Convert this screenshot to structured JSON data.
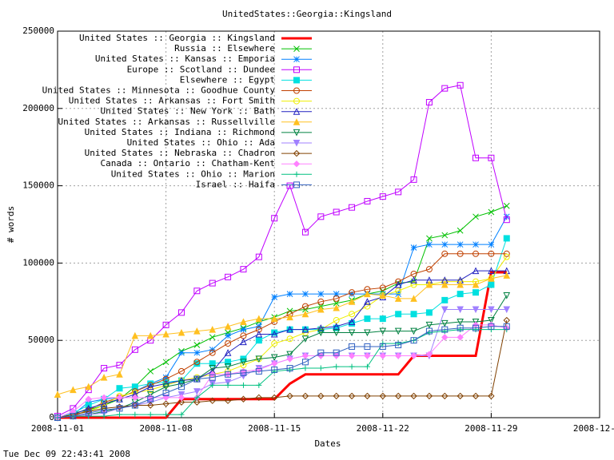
{
  "chart_data": {
    "type": "line",
    "title": "UnitedStates::Georgia::Kingsland",
    "x_label": "Dates",
    "y_label": "# words",
    "timestamp": "Tue Dec 09 22:43:41 2008",
    "grid": true,
    "legend": "top-left",
    "x": [
      "2008-11-01",
      "2008-11-02",
      "2008-11-03",
      "2008-11-04",
      "2008-11-05",
      "2008-11-06",
      "2008-11-07",
      "2008-11-08",
      "2008-11-09",
      "2008-11-10",
      "2008-11-11",
      "2008-11-12",
      "2008-11-13",
      "2008-11-14",
      "2008-11-15",
      "2008-11-16",
      "2008-11-17",
      "2008-11-18",
      "2008-11-19",
      "2008-11-20",
      "2008-11-21",
      "2008-11-22",
      "2008-11-23",
      "2008-11-24",
      "2008-11-25",
      "2008-11-26",
      "2008-11-27",
      "2008-11-28",
      "2008-11-29",
      "2008-11-30"
    ],
    "xlim": [
      "2008-11-01",
      "2008-12-06"
    ],
    "xticks": [
      "2008-11-01",
      "2008-11-08",
      "2008-11-15",
      "2008-11-22",
      "2008-11-29",
      "2008-12-06"
    ],
    "ylim": [
      0,
      250000
    ],
    "yticks": [
      0,
      50000,
      100000,
      150000,
      200000,
      250000
    ],
    "series": [
      {
        "name": "United States :: Georgia :: Kingsland",
        "color": "#ff0000",
        "marker": "none",
        "line_width": 3,
        "values": [
          0,
          0,
          0,
          0,
          0,
          0,
          0,
          0,
          12000,
          12000,
          12000,
          12000,
          12000,
          12000,
          12000,
          22000,
          28000,
          28000,
          28000,
          28000,
          28000,
          28000,
          28000,
          40000,
          40000,
          40000,
          40000,
          40000,
          94000,
          94000
        ]
      },
      {
        "name": "Russia :: Elsewhere",
        "color": "#00c000",
        "marker": "x",
        "values": [
          0,
          3000,
          5000,
          8000,
          12000,
          20000,
          30000,
          36000,
          43000,
          47000,
          52000,
          55000,
          58000,
          62000,
          65000,
          69000,
          70000,
          72000,
          74000,
          76000,
          80000,
          82000,
          87000,
          88000,
          116000,
          118000,
          121000,
          130000,
          133000,
          137000
        ]
      },
      {
        "name": "United States :: Kansas :: Emporia",
        "color": "#0080ff",
        "marker": "star",
        "values": [
          0,
          2000,
          10000,
          12000,
          13000,
          17000,
          22000,
          26000,
          42000,
          42000,
          44000,
          53000,
          57000,
          59000,
          78000,
          80000,
          80000,
          80000,
          80000,
          80000,
          80000,
          80000,
          80000,
          110000,
          112000,
          112000,
          112000,
          112000,
          112000,
          130000
        ]
      },
      {
        "name": "Europe :: Scotland :: Dundee",
        "color": "#c000ff",
        "marker": "square",
        "values": [
          1000,
          6000,
          18000,
          32000,
          34000,
          44000,
          50000,
          60000,
          68000,
          82000,
          87000,
          91000,
          96000,
          104000,
          129000,
          150000,
          120000,
          130000,
          133000,
          136000,
          140000,
          143000,
          146000,
          154000,
          204000,
          213000,
          215000,
          168000,
          168000,
          128000
        ]
      },
      {
        "name": "Elsewhere :: Egypt",
        "color": "#00e0e0",
        "marker": "square-filled",
        "values": [
          0,
          3000,
          8000,
          12000,
          19000,
          20000,
          22000,
          23000,
          24000,
          35000,
          35000,
          36000,
          38000,
          50000,
          55000,
          57000,
          57000,
          57000,
          58000,
          61000,
          64000,
          64000,
          67000,
          67000,
          68000,
          76000,
          80000,
          81000,
          86000,
          116000
        ]
      },
      {
        "name": "United States :: Minnesota :: Goodhue County",
        "color": "#c04000",
        "marker": "circle",
        "values": [
          0,
          1000,
          5000,
          10000,
          13000,
          17000,
          21000,
          25000,
          30000,
          36000,
          42000,
          48000,
          53000,
          57000,
          62000,
          67000,
          72000,
          75000,
          77000,
          81000,
          83000,
          84000,
          88000,
          93000,
          96000,
          106000,
          106000,
          106000,
          106000,
          106000
        ]
      },
      {
        "name": "United States :: Arkansas :: Fort Smith",
        "color": "#eeee00",
        "marker": "circle",
        "values": [
          0,
          2000,
          4000,
          8000,
          14000,
          16000,
          18000,
          21000,
          24000,
          26000,
          28000,
          30000,
          34000,
          38000,
          48000,
          51000,
          55000,
          57000,
          63000,
          67000,
          72000,
          79000,
          82000,
          86000,
          86000,
          88000,
          88000,
          88000,
          90000,
          104000
        ]
      },
      {
        "name": "United States :: New York :: Bath",
        "color": "#2020c0",
        "marker": "triangle",
        "values": [
          0,
          2000,
          6000,
          9000,
          12000,
          15000,
          20000,
          22000,
          24000,
          25000,
          30000,
          42000,
          49000,
          54000,
          54000,
          57000,
          57000,
          58000,
          59000,
          62000,
          75000,
          78000,
          86000,
          89000,
          89000,
          89000,
          89000,
          95000,
          95000,
          95000
        ]
      },
      {
        "name": "United States :: Arkansas :: Russellville",
        "color": "#ffc020",
        "marker": "triangle-filled",
        "values": [
          15000,
          18000,
          20000,
          26000,
          28000,
          53000,
          53000,
          54000,
          55000,
          56000,
          57000,
          59000,
          62000,
          64000,
          64000,
          65000,
          67000,
          70000,
          71000,
          75000,
          80000,
          79000,
          77000,
          77000,
          86000,
          86000,
          86000,
          86000,
          90000,
          92000
        ]
      },
      {
        "name": "United States :: Indiana :: Richmond",
        "color": "#008040",
        "marker": "inv-triangle",
        "values": [
          0,
          1000,
          2000,
          4000,
          6000,
          10000,
          15000,
          20000,
          22000,
          25000,
          32000,
          33000,
          36000,
          38000,
          39000,
          41000,
          51000,
          55000,
          55000,
          55000,
          55000,
          56000,
          56000,
          56000,
          60000,
          61000,
          62000,
          62000,
          63000,
          79000
        ]
      },
      {
        "name": "United States :: Ohio :: Ada",
        "color": "#a080ff",
        "marker": "inv-triangle-filled",
        "values": [
          0,
          1000,
          2000,
          3000,
          6000,
          8000,
          10000,
          13000,
          15000,
          17000,
          22000,
          23000,
          27000,
          32000,
          35000,
          38000,
          40000,
          40000,
          40000,
          40000,
          40000,
          40000,
          40000,
          40000,
          40000,
          70000,
          70000,
          70000,
          70000,
          70000
        ]
      },
      {
        "name": "United States :: Nebraska :: Chadron",
        "color": "#804000",
        "marker": "diamond",
        "values": [
          0,
          2000,
          4000,
          6000,
          7000,
          8000,
          8000,
          9000,
          10000,
          10000,
          11000,
          11000,
          12000,
          13000,
          13000,
          14000,
          14000,
          14000,
          14000,
          14000,
          14000,
          14000,
          14000,
          14000,
          14000,
          14000,
          14000,
          14000,
          14000,
          63000
        ]
      },
      {
        "name": "Canada :: Ontario :: Chatham-Kent",
        "color": "#ff80ff",
        "marker": "diamond-filled",
        "values": [
          0,
          4000,
          12000,
          13000,
          13000,
          13000,
          13000,
          13000,
          13000,
          13000,
          28000,
          28000,
          30000,
          31000,
          35000,
          38000,
          40000,
          40000,
          40000,
          40000,
          40000,
          40000,
          40000,
          40000,
          41000,
          52000,
          52000,
          60000,
          60000,
          58000
        ]
      },
      {
        "name": "United States :: Ohio :: Marion",
        "color": "#00c080",
        "marker": "plus",
        "values": [
          0,
          1000,
          1000,
          1000,
          2000,
          2000,
          2000,
          2000,
          2000,
          13000,
          21000,
          21000,
          21000,
          21000,
          30000,
          31000,
          32000,
          32000,
          33000,
          33000,
          33000,
          48000,
          48000,
          50000,
          55000,
          56000,
          57000,
          57000,
          57000,
          57000
        ]
      },
      {
        "name": "Israel :: Haifa",
        "color": "#3060c0",
        "marker": "square",
        "values": [
          0,
          1000,
          3000,
          5000,
          6000,
          8000,
          12000,
          16000,
          20000,
          25000,
          26000,
          28000,
          29000,
          30000,
          31000,
          32000,
          36000,
          42000,
          42000,
          46000,
          46000,
          46000,
          47000,
          50000,
          56000,
          57000,
          58000,
          58000,
          59000,
          59000
        ]
      }
    ]
  }
}
